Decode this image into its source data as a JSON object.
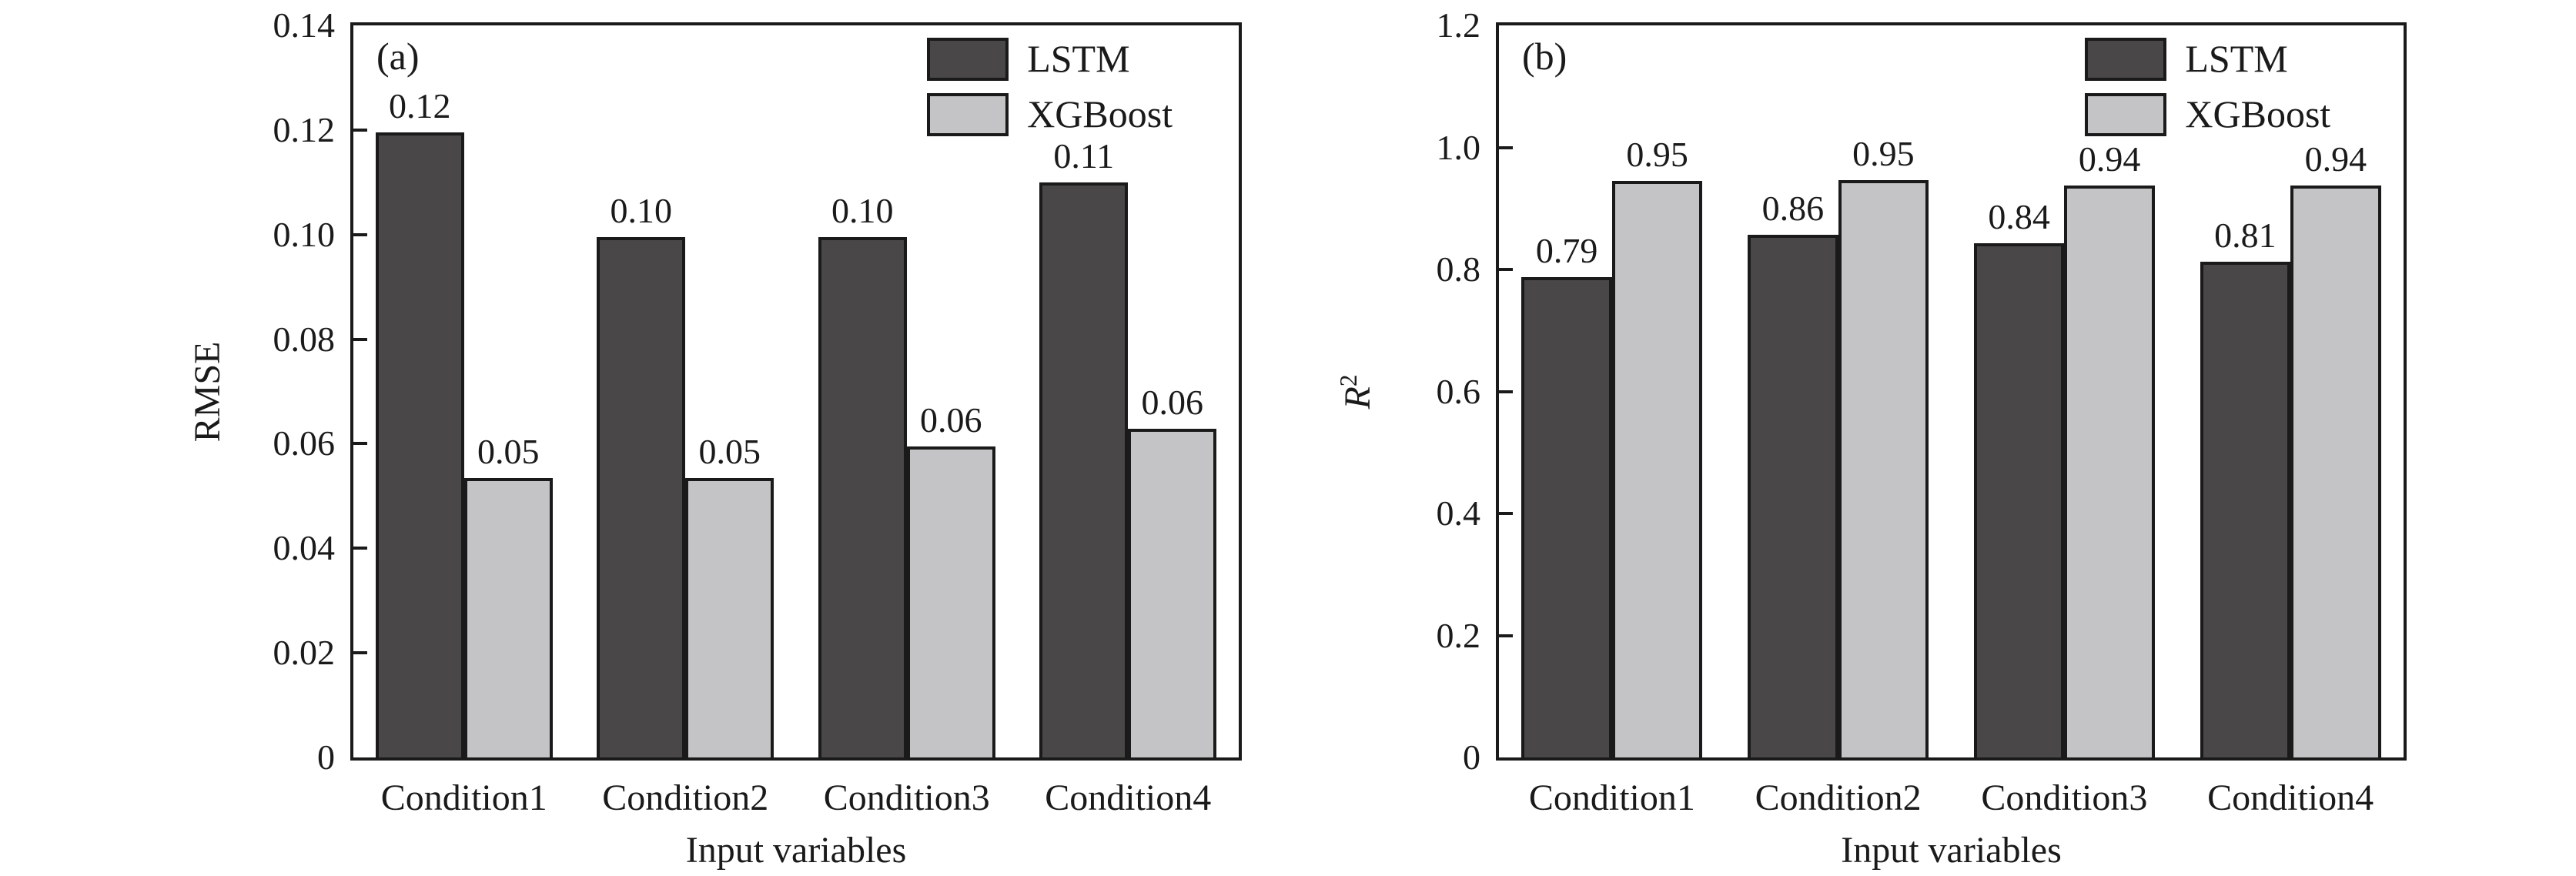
{
  "figure": {
    "background": "#ffffff",
    "axis_color": "#1a1a1a",
    "text_color": "#1a1a1a"
  },
  "chart_data": [
    {
      "type": "bar",
      "panel_label": "(a)",
      "xlabel": "Input variables",
      "ylabel": "RMSE",
      "ylabel_sup": "",
      "categories": [
        "Condition1",
        "Condition2",
        "Condition3",
        "Condition4"
      ],
      "series": [
        {
          "name": "LSTM",
          "color": "#4a4749",
          "values": [
            0.12,
            0.1,
            0.1,
            0.11
          ],
          "data_labels": [
            "0.12",
            "0.10",
            "0.10",
            "0.11"
          ],
          "bar_heights": [
            0.1195,
            0.0995,
            0.0995,
            0.11
          ]
        },
        {
          "name": "XGBoost",
          "color": "#c4c4c6",
          "values": [
            0.05,
            0.05,
            0.06,
            0.06
          ],
          "data_labels": [
            "0.05",
            "0.05",
            "0.06",
            "0.06"
          ],
          "bar_heights": [
            0.0535,
            0.0535,
            0.0595,
            0.0628
          ]
        }
      ],
      "ylim": [
        0,
        0.14
      ],
      "ytick_values": [
        0.14,
        0.12,
        0.1,
        0.08,
        0.06,
        0.04,
        0.02,
        0
      ],
      "ytick_labels": [
        "0.14",
        "0.12",
        "0.10",
        "0.08",
        "0.06",
        "0.04",
        "0.02",
        "0"
      ],
      "legend": [
        "LSTM",
        "XGBoost"
      ],
      "legend_position": "top-right",
      "grid": false
    },
    {
      "type": "bar",
      "panel_label": "(b)",
      "xlabel": "Input variables",
      "ylabel": "R",
      "ylabel_sup": "2",
      "categories": [
        "Condition1",
        "Condition2",
        "Condition3",
        "Condition4"
      ],
      "series": [
        {
          "name": "LSTM",
          "color": "#4a4749",
          "values": [
            0.79,
            0.86,
            0.84,
            0.81
          ],
          "data_labels": [
            "0.79",
            "0.86",
            "0.84",
            "0.81"
          ],
          "bar_heights": [
            0.787,
            0.857,
            0.843,
            0.812
          ]
        },
        {
          "name": "XGBoost",
          "color": "#c4c4c6",
          "values": [
            0.95,
            0.95,
            0.94,
            0.94
          ],
          "data_labels": [
            "0.95",
            "0.95",
            "0.94",
            "0.94"
          ],
          "bar_heights": [
            0.945,
            0.947,
            0.938,
            0.938
          ]
        }
      ],
      "ylim": [
        0,
        1.2
      ],
      "ytick_values": [
        1.2,
        1.0,
        0.8,
        0.6,
        0.4,
        0.2,
        0
      ],
      "ytick_labels": [
        "1.2",
        "1.0",
        "0.8",
        "0.6",
        "0.4",
        "0.2",
        "0"
      ],
      "legend": [
        "LSTM",
        "XGBoost"
      ],
      "legend_position": "top-right",
      "grid": false
    }
  ]
}
